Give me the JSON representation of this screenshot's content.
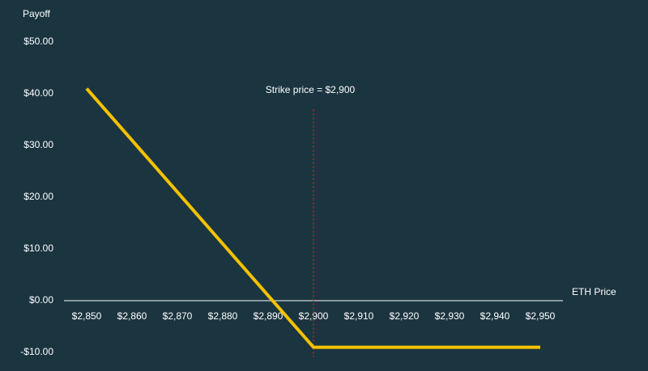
{
  "chart_data": {
    "type": "line",
    "y_label": "Payoff",
    "x_label": "ETH Price",
    "annotation": "Strike price = $2,900",
    "strike": 2900,
    "strike_color": "#c0272d",
    "x": [
      2850,
      2900,
      2950
    ],
    "series": [
      {
        "name": "Payoff",
        "color": "#f5c200",
        "values": [
          41,
          -9,
          -9
        ]
      }
    ],
    "xlim": [
      2845,
      2955
    ],
    "xticks": [
      {
        "value": 2850,
        "label": "$2,850"
      },
      {
        "value": 2860,
        "label": "$2,860"
      },
      {
        "value": 2870,
        "label": "$2,870"
      },
      {
        "value": 2880,
        "label": "$2,880"
      },
      {
        "value": 2890,
        "label": "$2,890"
      },
      {
        "value": 2900,
        "label": "$2,900"
      },
      {
        "value": 2910,
        "label": "$2,910"
      },
      {
        "value": 2920,
        "label": "$2,920"
      },
      {
        "value": 2930,
        "label": "$2,930"
      },
      {
        "value": 2940,
        "label": "$2,940"
      },
      {
        "value": 2950,
        "label": "$2,950"
      }
    ],
    "ylim": [
      -10,
      50
    ],
    "yticks": [
      {
        "value": -10,
        "label": "-$10.00"
      },
      {
        "value": 0,
        "label": "$0.00"
      },
      {
        "value": 10,
        "label": "$10.00"
      },
      {
        "value": 20,
        "label": "$20.00"
      },
      {
        "value": 30,
        "label": "$30.00"
      },
      {
        "value": 40,
        "label": "$40.00"
      },
      {
        "value": 50,
        "label": "$50.00"
      }
    ],
    "grid": false
  }
}
